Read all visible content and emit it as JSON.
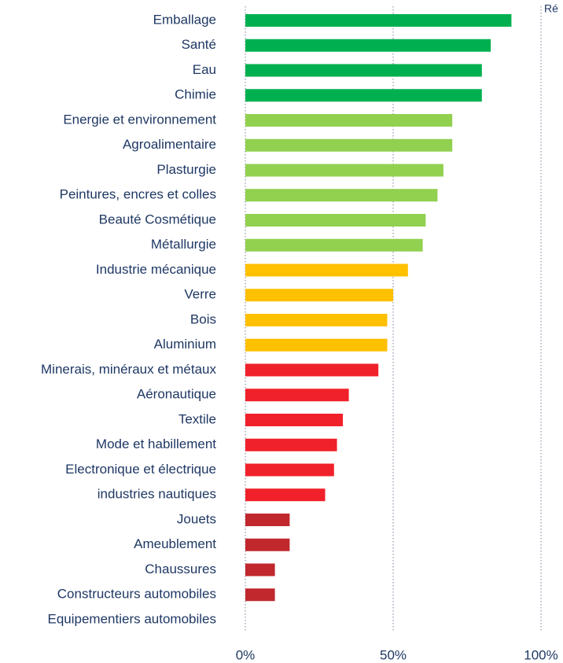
{
  "chart_data": {
    "type": "barh",
    "annotation": "Ré",
    "categories": [
      "Emballage",
      "Santé",
      "Eau",
      "Chimie",
      "Energie et environnement",
      "Agroalimentaire",
      "Plasturgie",
      "Peintures, encres et colles",
      "Beauté Cosmétique",
      "Métallurgie",
      "Industrie mécanique",
      "Verre",
      "Bois",
      "Aluminium",
      "Minerais, minéraux et métaux",
      "Aéronautique",
      "Textile",
      "Mode et habillement",
      "Electronique et électrique",
      "industries nautiques",
      "Jouets",
      "Ameublement",
      "Chaussures",
      "Constructeurs automobiles",
      "Equipementiers automobiles"
    ],
    "values": [
      90,
      83,
      80,
      80,
      70,
      70,
      67,
      65,
      61,
      60,
      55,
      50,
      48,
      48,
      45,
      35,
      33,
      31,
      30,
      27,
      15,
      15,
      10,
      10,
      0
    ],
    "colors": [
      "#00b050",
      "#00b050",
      "#00b050",
      "#00b050",
      "#92d050",
      "#92d050",
      "#92d050",
      "#92d050",
      "#92d050",
      "#92d050",
      "#ffc000",
      "#ffc000",
      "#ffc000",
      "#ffc000",
      "#f0212a",
      "#f0212a",
      "#f0212a",
      "#f0212a",
      "#f0212a",
      "#f0212a",
      "#c0282d",
      "#c0282d",
      "#c0282d",
      "#c0282d",
      "#c0282d"
    ],
    "xlim": [
      0,
      100
    ],
    "xticks": [
      {
        "value": 0,
        "label": "0%"
      },
      {
        "value": 50,
        "label": "50%"
      },
      {
        "value": 100,
        "label": "100%"
      }
    ],
    "grid": true
  }
}
